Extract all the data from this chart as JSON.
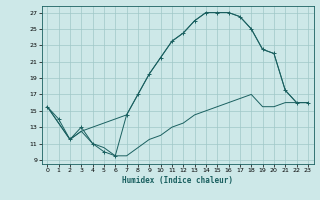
{
  "xlabel": "Humidex (Indice chaleur)",
  "xlim": [
    -0.5,
    23.5
  ],
  "ylim": [
    8.5,
    27.8
  ],
  "xticks": [
    0,
    1,
    2,
    3,
    4,
    5,
    6,
    7,
    8,
    9,
    10,
    11,
    12,
    13,
    14,
    15,
    16,
    17,
    18,
    19,
    20,
    21,
    22,
    23
  ],
  "yticks": [
    9,
    11,
    13,
    15,
    17,
    19,
    21,
    23,
    25,
    27
  ],
  "bg_color": "#cde8e8",
  "grid_color": "#a0c8c8",
  "line_color": "#1a6060",
  "line1_x": [
    0,
    1,
    2,
    3,
    4,
    5,
    6,
    7,
    8,
    9,
    10,
    11,
    12,
    13,
    14,
    15,
    16,
    17,
    18,
    19,
    20,
    21,
    22,
    23
  ],
  "line1_y": [
    15.5,
    14.0,
    11.5,
    13.0,
    11.0,
    10.0,
    9.5,
    14.5,
    17.0,
    19.5,
    21.5,
    23.5,
    24.5,
    26.0,
    27.0,
    27.0,
    27.0,
    26.5,
    25.0,
    22.5,
    22.0,
    17.5,
    16.0,
    16.0
  ],
  "line2_x": [
    0,
    1,
    2,
    3,
    4,
    5,
    6,
    7,
    8,
    9,
    10,
    11,
    12,
    13,
    14,
    15,
    16,
    17,
    18,
    19,
    20,
    21,
    22,
    23
  ],
  "line2_y": [
    15.5,
    13.5,
    11.5,
    12.5,
    11.0,
    10.5,
    9.5,
    9.5,
    10.5,
    11.5,
    12.0,
    13.0,
    13.5,
    14.5,
    15.0,
    15.5,
    16.0,
    16.5,
    17.0,
    15.5,
    15.5,
    16.0,
    16.0,
    16.0
  ],
  "line3_x": [
    0,
    1,
    2,
    3,
    7,
    8,
    9,
    10,
    11,
    12,
    13,
    14,
    15,
    16,
    17,
    18,
    19,
    20,
    21,
    22,
    23
  ],
  "line3_y": [
    15.5,
    13.5,
    11.5,
    12.5,
    14.5,
    17.0,
    19.5,
    21.5,
    23.5,
    24.5,
    26.0,
    27.0,
    27.0,
    27.0,
    26.5,
    25.0,
    22.5,
    22.0,
    17.5,
    16.0,
    16.0
  ]
}
